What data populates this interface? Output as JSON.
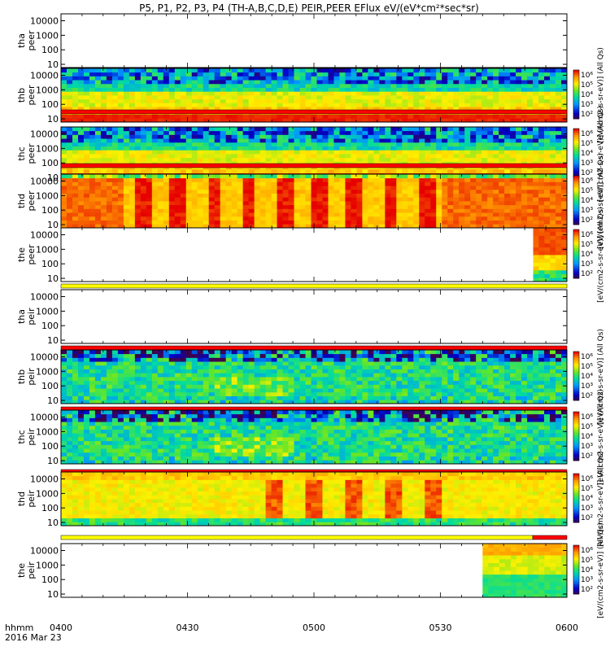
{
  "chart_data": {
    "type": "heatmap",
    "title": "P5, P1, P2, P3, P4 (TH-A,B,C,D,E) PEIR,PEER EFlux eV/(eV*cm²*sec*sr)",
    "x_ticks": [
      "0400",
      "0430",
      "0500",
      "0530",
      "0600"
    ],
    "x_range": [
      "0400",
      "0600"
    ],
    "x_caption": [
      "hhmm",
      "2016 Mar 23"
    ],
    "y_ticks": [
      "10",
      "100",
      "1000",
      "10000"
    ],
    "y_scale": "log",
    "y_range": [
      6,
      30000
    ],
    "colorbar_ticks": [
      "10²",
      "10³",
      "10⁴",
      "10⁵",
      "10⁶"
    ],
    "colorbar_label": "[eV/(cm2-s-sr-eV)] (All Qs)",
    "panels": [
      {
        "label": [
          "tha",
          "peer"
        ],
        "has_data": false,
        "colorbar": false,
        "flag": "none"
      },
      {
        "label": [
          "thb",
          "peer"
        ],
        "has_data": true,
        "colorbar": true,
        "flag": "red"
      },
      {
        "label": [
          "thc",
          "peer"
        ],
        "has_data": true,
        "colorbar": true,
        "flag": "red"
      },
      {
        "label": [
          "thd",
          "peer"
        ],
        "has_data": true,
        "colorbar": true,
        "flag": "none"
      },
      {
        "label": [
          "the",
          "peer"
        ],
        "has_data": true,
        "data_start": "0552",
        "colorbar": true,
        "flag": "yellow"
      },
      {
        "label": [
          "tha",
          "peir"
        ],
        "has_data": false,
        "colorbar": false,
        "flag": "red"
      },
      {
        "label": [
          "thb",
          "peir"
        ],
        "has_data": true,
        "colorbar": true,
        "flag": "red"
      },
      {
        "label": [
          "thc",
          "peir"
        ],
        "has_data": true,
        "colorbar": true,
        "flag": "red"
      },
      {
        "label": [
          "thd",
          "peir"
        ],
        "has_data": true,
        "colorbar": true,
        "flag": "yellow-red"
      },
      {
        "label": [
          "the",
          "peir"
        ],
        "has_data": true,
        "data_start": "0540",
        "colorbar": true,
        "flag": "none"
      }
    ]
  }
}
